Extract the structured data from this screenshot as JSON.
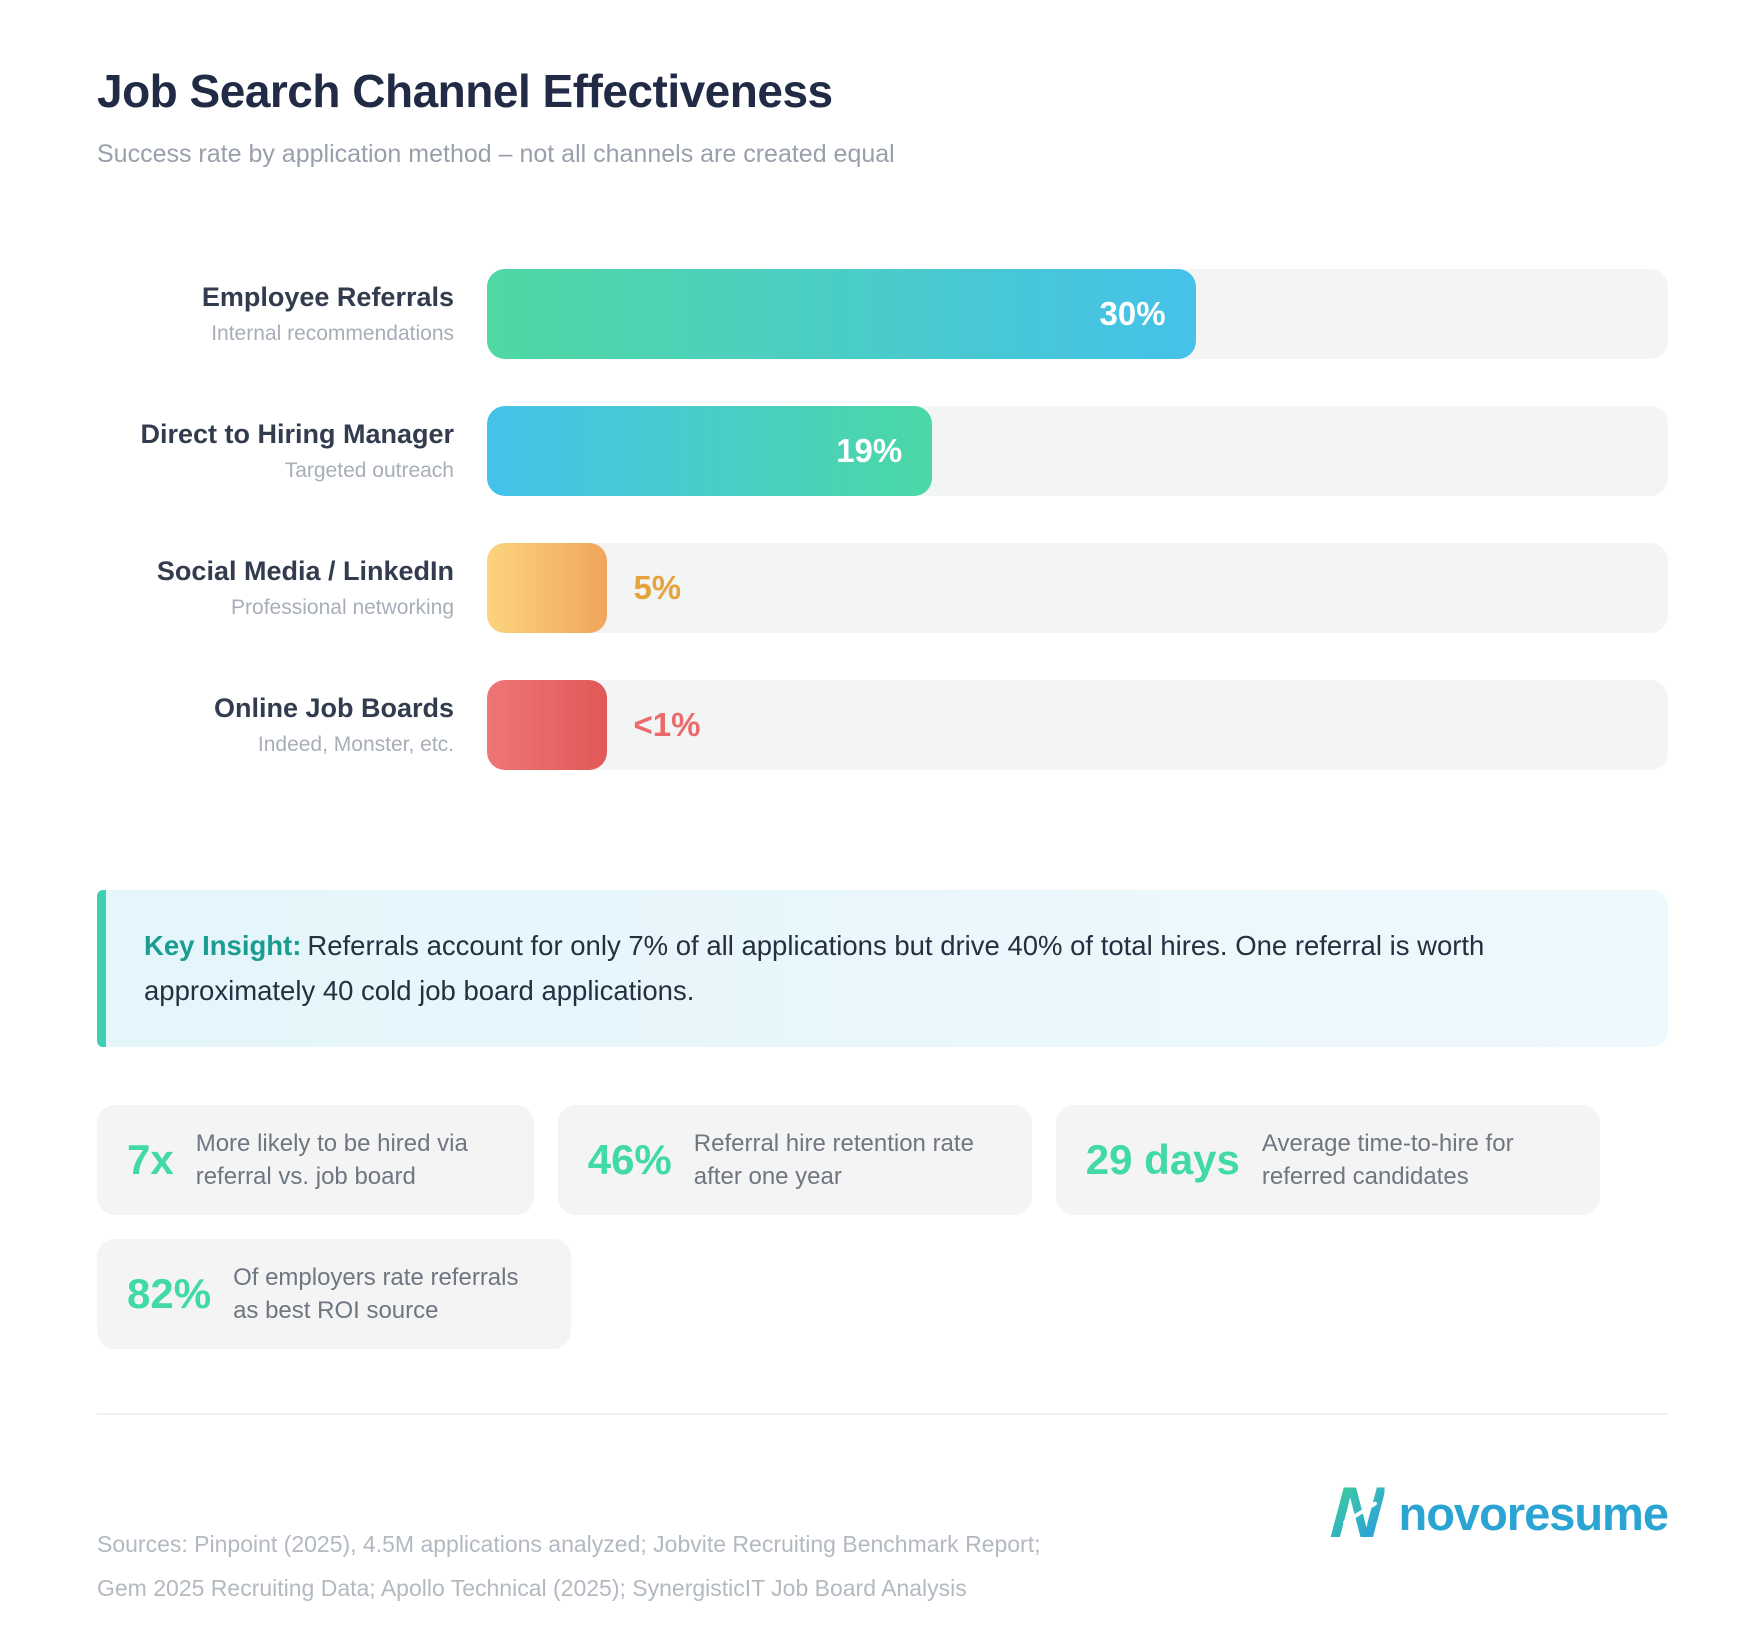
{
  "header": {
    "title": "Job Search Channel Effectiveness",
    "subtitle": "Success rate by application method – not all channels are created equal"
  },
  "chart_data": {
    "type": "bar",
    "orientation": "horizontal",
    "unit": "%",
    "title": "Job Search Channel Effectiveness",
    "categories": [
      "Employee Referrals",
      "Direct to Hiring Manager",
      "Social Media / LinkedIn",
      "Online Job Boards"
    ],
    "values": [
      30,
      19,
      5,
      0.9
    ],
    "xlim": [
      0,
      50
    ],
    "grid": false,
    "legend": "none",
    "rows": [
      {
        "label": "Employee Referrals",
        "sublabel": "Internal recommendations",
        "value": 30,
        "value_label": "30%",
        "fill_pct": 60,
        "color_start": "#4fd8a2",
        "color_end": "#46c1ea",
        "label_inside": true,
        "value_color": "#ffffff"
      },
      {
        "label": "Direct to Hiring Manager",
        "sublabel": "Targeted outreach",
        "value": 19,
        "value_label": "19%",
        "fill_pct": 37.7,
        "color_start": "#45c2eb",
        "color_end": "#4bd8a5",
        "label_inside": true,
        "value_color": "#ffffff"
      },
      {
        "label": "Social Media / LinkedIn",
        "sublabel": "Professional networking",
        "value": 5,
        "value_label": "5%",
        "fill_pct": 10.2,
        "color_start": "#fcd47f",
        "color_end": "#f1a55b",
        "label_inside": false,
        "value_color": "#e5a33e"
      },
      {
        "label": "Online Job Boards",
        "sublabel": "Indeed, Monster, etc.",
        "value": 0.9,
        "value_label": "<1%",
        "fill_pct": 10.2,
        "color_start": "#ef7676",
        "color_end": "#e15858",
        "label_inside": false,
        "value_color": "#ec6a6c"
      }
    ]
  },
  "insight": {
    "label": "Key Insight:",
    "text": "Referrals account for only 7% of all applications but drive 40% of total hires. One referral is worth approximately 40 cold job board applications."
  },
  "stats": [
    {
      "value": "7x",
      "label": "More likely to be hired via referral vs. job board"
    },
    {
      "value": "46%",
      "label": "Referral hire retention rate after one year"
    },
    {
      "value": "29 days",
      "label": "Average time-to-hire for referred candidates"
    },
    {
      "value": "82%",
      "label": "Of employers rate referrals as best ROI source"
    }
  ],
  "footer": {
    "sources_line1": "Sources: Pinpoint (2025), 4.5M applications analyzed; Jobvite Recruiting Benchmark Report;",
    "sources_line2": "Gem 2025 Recruiting Data; Apollo Technical (2025); SynergisticIT Job Board Analysis",
    "logo_letter": "N",
    "brand": "novoresume"
  },
  "colors": {
    "accent_green": "#43d9a4",
    "accent_blue": "#46c1ea",
    "insight_teal": "#1b9c90",
    "insight_border": "#3fd0b2",
    "brand_blue": "#2aa5d3",
    "track_gray": "#f3f4f4"
  }
}
